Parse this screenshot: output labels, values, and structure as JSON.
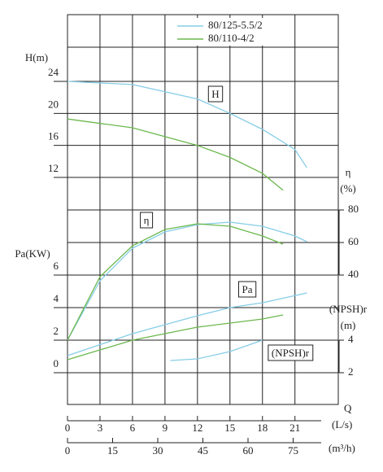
{
  "chart_data": {
    "type": "line",
    "xlabel": "Q",
    "xunit": "(L/s)",
    "x2unit": "(m³/h)",
    "xlim": [
      0,
      25
    ],
    "xticks": [
      0,
      3,
      6,
      9,
      12,
      15,
      18,
      21
    ],
    "x2lim": [
      0,
      90
    ],
    "x2ticks": [
      0,
      15,
      30,
      45,
      60,
      75
    ],
    "series": [
      {
        "name": "80/125-5.5/2",
        "color": "#86cde6"
      },
      {
        "name": "80/110-4/2",
        "color": "#6cb84e"
      }
    ],
    "panels": [
      {
        "label": "H",
        "ylabel": "H(m)",
        "ylim": [
          12,
          24
        ],
        "yticks": [
          12,
          16,
          20,
          24
        ],
        "curves": [
          {
            "x": [
              0,
              6,
              12,
              15,
              18,
              21,
              22.1
            ],
            "values": [
              24,
              23.6,
              21.8,
              20,
              18,
              15.5,
              13.2
            ]
          },
          {
            "x": [
              0,
              6,
              12,
              15,
              18,
              19.9
            ],
            "values": [
              19.3,
              18.2,
              16,
              14.5,
              12.5,
              10.4
            ]
          }
        ]
      },
      {
        "label": "η",
        "ylabel": "η",
        "yunit": "(%)",
        "ylim": [
          40,
          80
        ],
        "yticks": [
          40,
          60,
          80
        ],
        "curves": [
          {
            "x": [
              0,
              3,
              6,
              9,
              12,
              15,
              18,
              21,
              22.1
            ],
            "values": [
              0,
              36.5,
              56.5,
              66.5,
              71,
              72.5,
              70,
              64,
              60.5
            ]
          },
          {
            "x": [
              0,
              3,
              6,
              9,
              12,
              15,
              18,
              19.9
            ],
            "values": [
              0,
              39,
              58,
              68,
              71.5,
              70,
              64,
              59
            ]
          }
        ]
      },
      {
        "label": "Pa",
        "ylabel": "Pa(KW)",
        "ylim": [
          0,
          6
        ],
        "yticks": [
          0,
          2,
          4,
          6
        ],
        "curves": [
          {
            "x": [
              0,
              6,
              12,
              15,
              18,
              22.1
            ],
            "values": [
              1.05,
              2.4,
              3.5,
              4,
              4.3,
              4.9
            ]
          },
          {
            "x": [
              0,
              6,
              12,
              18,
              19.9
            ],
            "values": [
              0.8,
              2,
              2.8,
              3.3,
              3.55
            ]
          }
        ]
      },
      {
        "label": "(NPSH)r",
        "ylabel": "(NPSH)r",
        "yunit": "(m)",
        "ylim": [
          2,
          4
        ],
        "yticks": [
          2,
          4
        ],
        "curves": [
          {
            "x": [
              9.5,
              12,
              15,
              18
            ],
            "values": [
              2.75,
              2.85,
              3.3,
              4.0
            ]
          }
        ]
      }
    ]
  }
}
